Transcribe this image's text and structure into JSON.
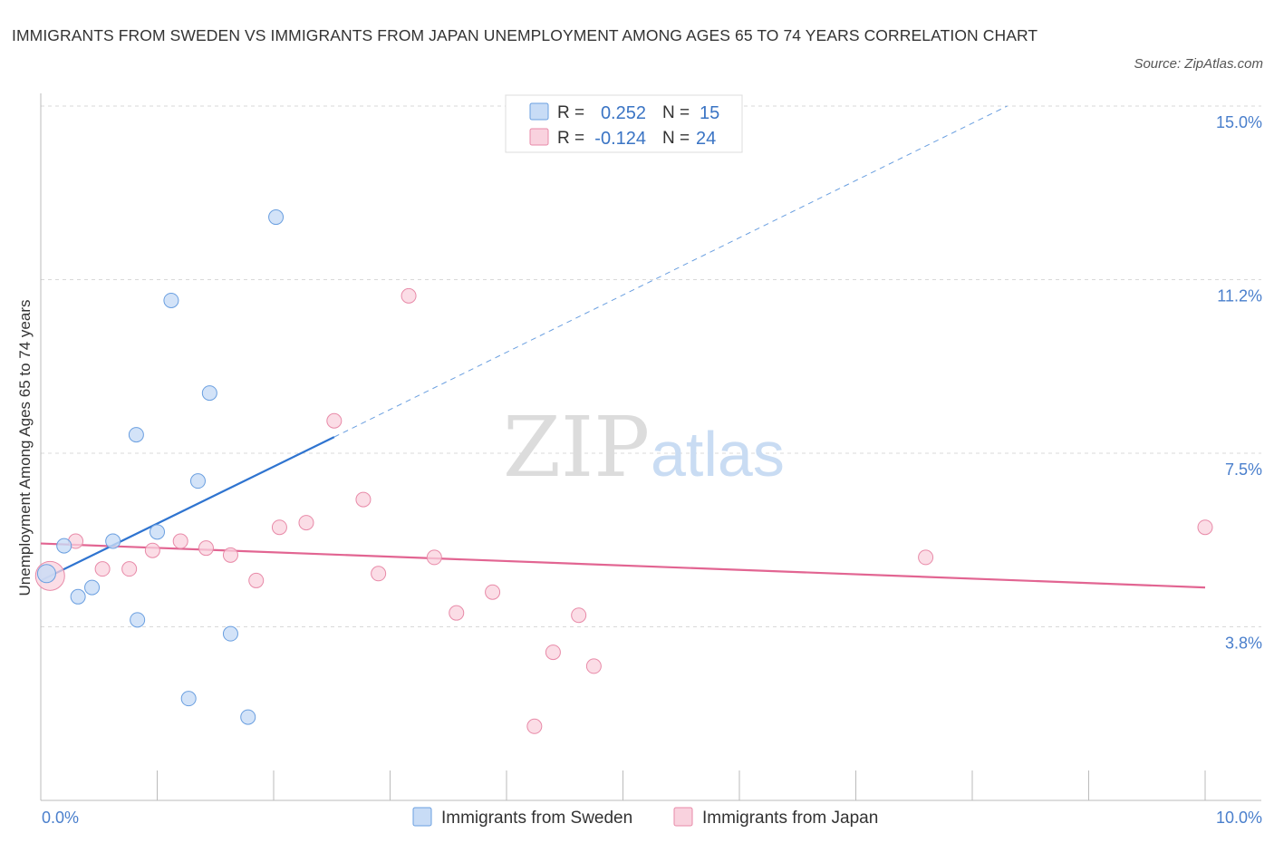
{
  "title": "IMMIGRANTS FROM SWEDEN VS IMMIGRANTS FROM JAPAN UNEMPLOYMENT AMONG AGES 65 TO 74 YEARS CORRELATION CHART",
  "source": "Source: ZipAtlas.com",
  "watermark": {
    "zip": "ZIP",
    "atlas": "atlas"
  },
  "legend": {
    "sweden": {
      "r_label": "R =",
      "r_value": "0.252",
      "n_label": "N =",
      "n_value": "15"
    },
    "japan": {
      "r_label": "R =",
      "r_value": "-0.124",
      "n_label": "N =",
      "n_value": "24"
    }
  },
  "colors": {
    "sweden": "#6a9fe0",
    "sweden_fill": "#c8dcf6",
    "sweden_line": "#2f74d0",
    "japan": "#e88aa8",
    "japan_fill": "#f9d2de",
    "japan_line": "#e26592"
  },
  "chart_data": {
    "type": "scatter",
    "xlabel": "",
    "ylabel": "Unemployment Among Ages 65 to 74 years",
    "xlim": [
      0,
      10
    ],
    "ylim": [
      0,
      15
    ],
    "x_tick_labels": [
      "0.0%",
      "10.0%"
    ],
    "y_tick_labels": [
      "3.8%",
      "7.5%",
      "11.2%",
      "15.0%"
    ],
    "y_ticks": [
      3.75,
      7.5,
      11.25,
      15
    ],
    "grid": true,
    "series": [
      {
        "name": "Immigrants from Sweden",
        "points": [
          [
            0.05,
            4.9
          ],
          [
            0.2,
            5.5
          ],
          [
            0.32,
            4.4
          ],
          [
            0.44,
            4.6
          ],
          [
            0.62,
            5.6
          ],
          [
            0.82,
            7.9
          ],
          [
            0.83,
            3.9
          ],
          [
            1.0,
            5.8
          ],
          [
            1.12,
            10.8
          ],
          [
            1.27,
            2.2
          ],
          [
            1.35,
            6.9
          ],
          [
            1.45,
            8.8
          ],
          [
            1.63,
            3.6
          ],
          [
            1.78,
            1.8
          ],
          [
            2.02,
            12.6
          ]
        ],
        "trend": {
          "x": [
            0.0,
            2.52
          ],
          "y": [
            4.75,
            7.85
          ]
        },
        "trend_ext": {
          "x": [
            2.52,
            8.3
          ],
          "y": [
            7.85,
            15.0
          ]
        }
      },
      {
        "name": "Immigrants from Japan",
        "points": [
          [
            0.08,
            4.85
          ],
          [
            0.3,
            5.6
          ],
          [
            0.53,
            5.0
          ],
          [
            0.76,
            5.0
          ],
          [
            0.96,
            5.4
          ],
          [
            1.2,
            5.6
          ],
          [
            1.42,
            5.45
          ],
          [
            1.63,
            5.3
          ],
          [
            1.85,
            4.75
          ],
          [
            2.05,
            5.9
          ],
          [
            2.28,
            6.0
          ],
          [
            2.52,
            8.2
          ],
          [
            2.77,
            6.5
          ],
          [
            2.9,
            4.9
          ],
          [
            3.16,
            10.9
          ],
          [
            3.38,
            5.25
          ],
          [
            3.57,
            4.05
          ],
          [
            3.88,
            4.5
          ],
          [
            4.24,
            1.6
          ],
          [
            4.4,
            3.2
          ],
          [
            4.62,
            4.0
          ],
          [
            4.75,
            2.9
          ],
          [
            7.6,
            5.25
          ],
          [
            10.0,
            5.9
          ]
        ],
        "trend": {
          "x": [
            0.0,
            10.0
          ],
          "y": [
            5.55,
            4.6
          ]
        }
      }
    ]
  }
}
